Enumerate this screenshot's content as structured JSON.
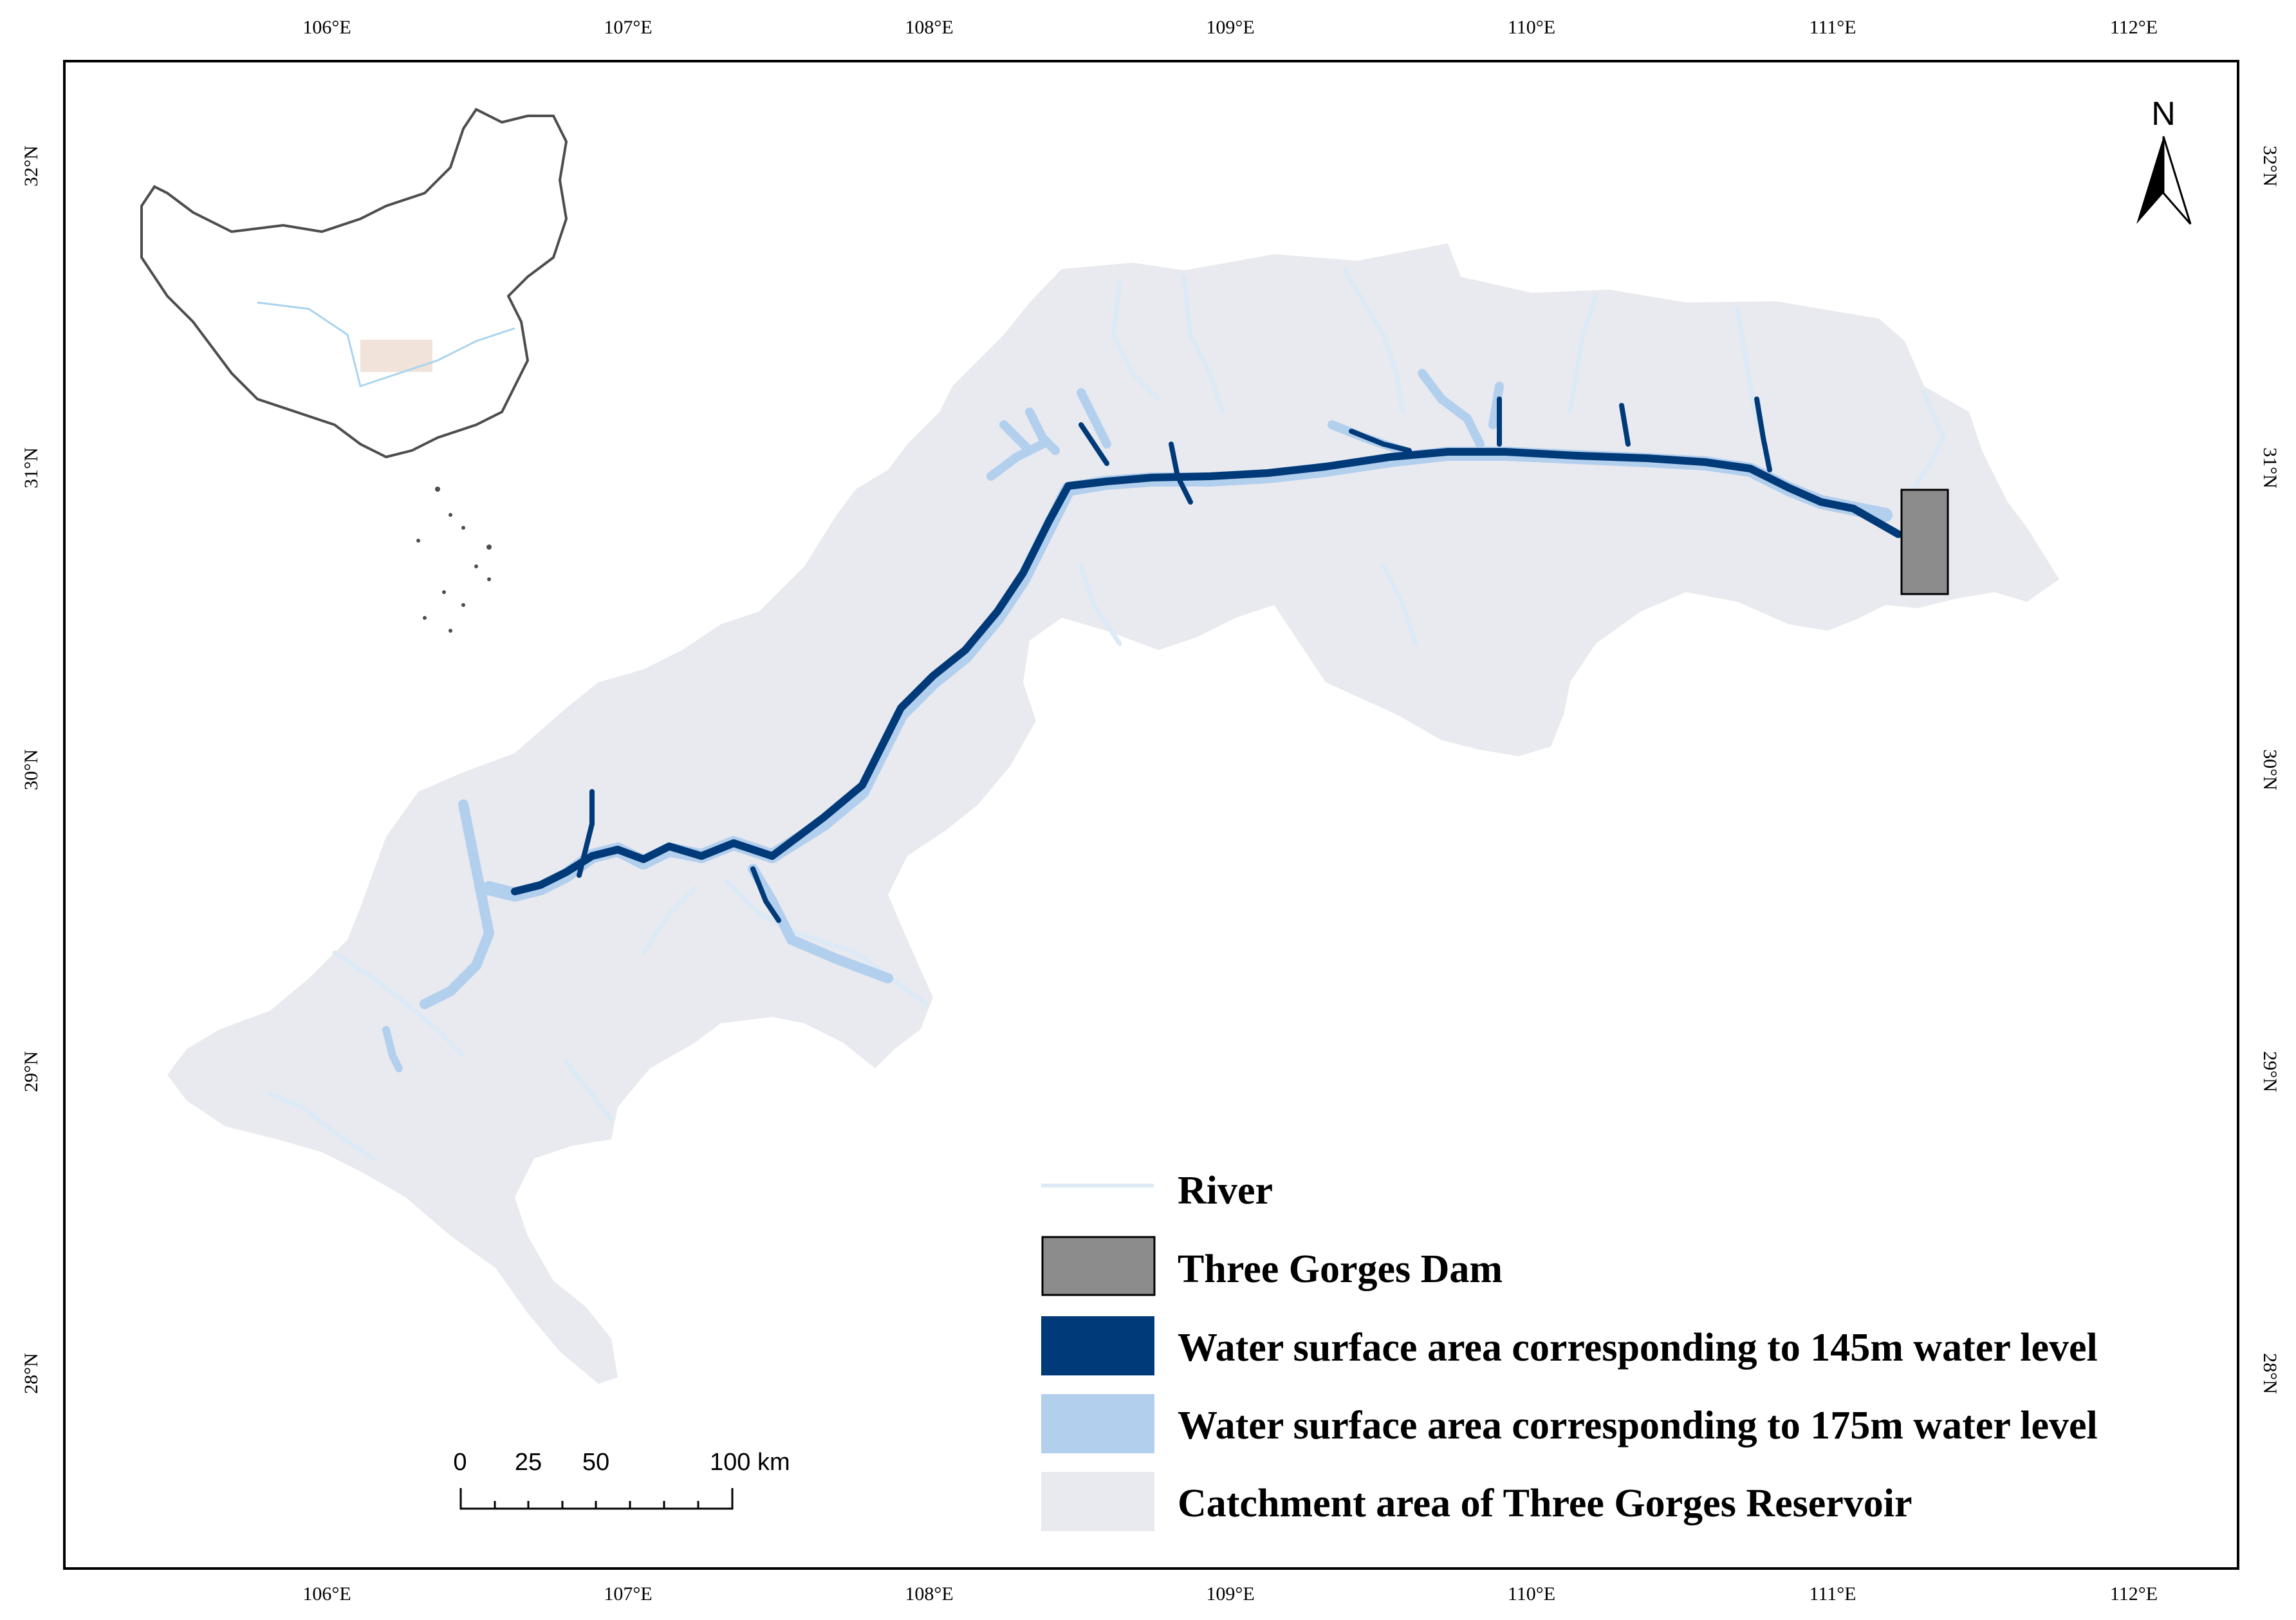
{
  "map": {
    "longitude_labels": [
      "106°E",
      "107°E",
      "108°E",
      "109°E",
      "110°E",
      "111°E",
      "112°E"
    ],
    "latitude_labels": [
      "32°N",
      "31°N",
      "30°N",
      "29°N",
      "28°N"
    ],
    "north_label": "N",
    "scale_bar": {
      "labels": [
        "0",
        "25",
        "50",
        "100 km"
      ]
    },
    "legend": [
      {
        "id": "river",
        "label": "River",
        "color": "#dbeaf6"
      },
      {
        "id": "dam",
        "label": "Three Gorges Dam",
        "color": "#8c8c8c"
      },
      {
        "id": "water145",
        "label": "Water surface area corresponding to 145m water level",
        "color": "#003a78"
      },
      {
        "id": "water175",
        "label": "Water surface area corresponding to 175m water level",
        "color": "#b3cfee"
      },
      {
        "id": "catchment",
        "label": "Catchment area of Three Gorges Reservoir",
        "color": "#e9eaef"
      }
    ],
    "inset": {
      "description_visible": false,
      "highlight_color": "#f1e3da",
      "outline_color": "#4d4d4d"
    }
  }
}
